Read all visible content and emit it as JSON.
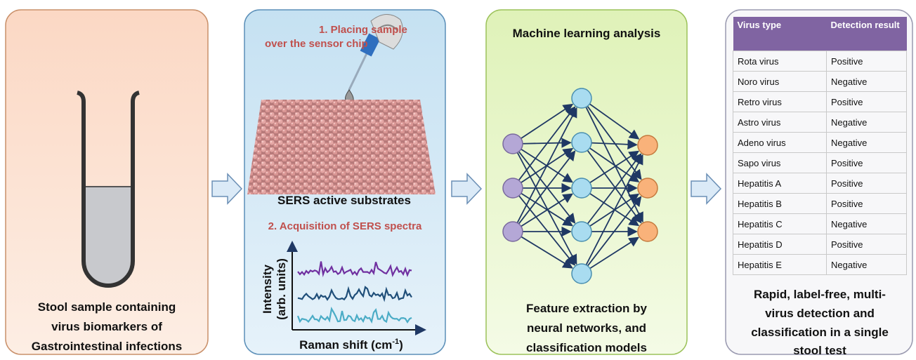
{
  "panels": [
    {
      "caption": [
        "Stool sample containing",
        "virus biomarkers of",
        "Gastrointestinal infections"
      ]
    },
    {
      "step1": [
        "1. Placing sample",
        "over the sensor chip"
      ],
      "substrate_label": "SERS active substrates",
      "step2": "2. Acquisition of SERS spectra",
      "y_axis_label": [
        "Intensity",
        "(arb. units)"
      ],
      "x_axis_label": {
        "text": "Raman shift (cm",
        "superscript": "-1",
        "suffix": ")"
      }
    },
    {
      "title": "Machine learning analysis",
      "caption": [
        "Feature extraction by",
        "neural networks, and",
        "classification models"
      ]
    },
    {
      "table": {
        "header": [
          "Virus type",
          "Detection result"
        ],
        "rows": [
          [
            "Rota virus",
            "Positive"
          ],
          [
            "Noro virus",
            "Negative"
          ],
          [
            "Retro virus",
            "Positive"
          ],
          [
            "Astro virus",
            "Negative"
          ],
          [
            "Adeno virus",
            "Negative"
          ],
          [
            "Sapo virus",
            "Positive"
          ],
          [
            "Hepatitis A",
            "Positive"
          ],
          [
            "Hepatitis B",
            "Positive"
          ],
          [
            "Hepatitis C",
            "Negative"
          ],
          [
            "Hepatitis D",
            "Positive"
          ],
          [
            "Hepatitis E",
            "Negative"
          ]
        ]
      },
      "caption": [
        "Rapid, label-free, multi-",
        "virus detection and",
        "classification in a single",
        "stool test"
      ]
    }
  ]
}
